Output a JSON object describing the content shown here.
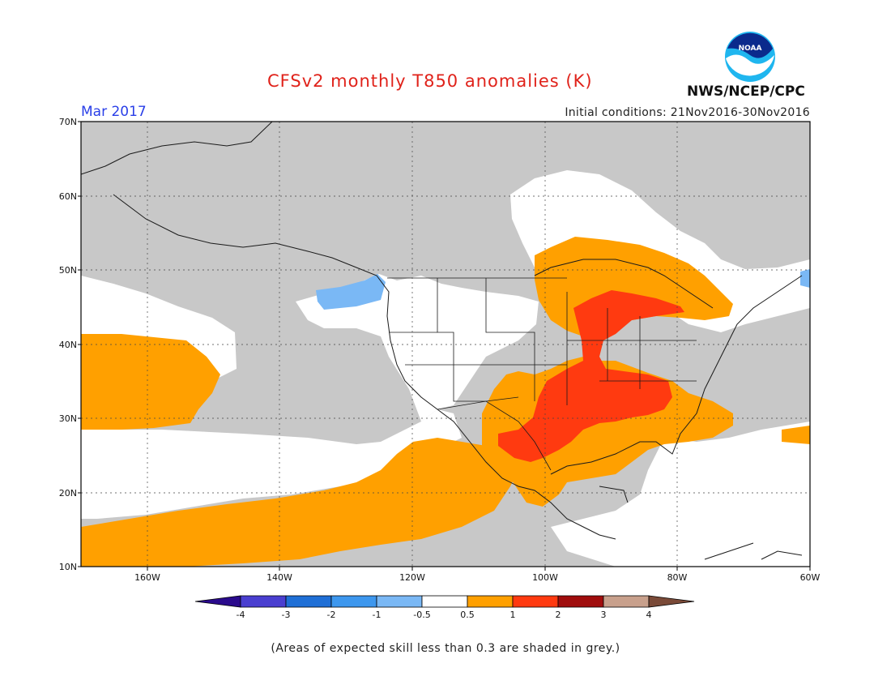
{
  "header": {
    "title": "CFSv2 monthly T850 anomalies (K)",
    "month": "Mar 2017",
    "initial_conditions": "Initial conditions: 21Nov2016-30Nov2016",
    "agency": "NWS/NCEP/CPC",
    "logo_text": "NOAA"
  },
  "map": {
    "lat_labels": [
      "70N",
      "60N",
      "50N",
      "40N",
      "30N",
      "20N",
      "10N"
    ],
    "lon_labels": [
      "160W",
      "140W",
      "120W",
      "100W",
      "80W",
      "60W"
    ],
    "lat_range": [
      10,
      70
    ],
    "lon_range": [
      -170,
      -60
    ]
  },
  "colorbar": {
    "labels": [
      "-4",
      "-3",
      "-2",
      "-1",
      "-0.5",
      "0.5",
      "1",
      "2",
      "3",
      "4"
    ],
    "colors": [
      "#2a0a8c",
      "#4a3fd0",
      "#1f6fd6",
      "#3d97ee",
      "#7ab8f5",
      "#ffffff",
      "#ffa000",
      "#ff3a10",
      "#a00d0d",
      "#c8a08c",
      "#7a4a38"
    ]
  },
  "legend_colors": {
    "grey_low_skill": "#c8c8c8",
    "positive_0_5_to_1": "#ffa000",
    "positive_1_to_2": "#ff3a10",
    "negative_0_5_to_1": "#7ab8f5",
    "neutral": "#ffffff"
  },
  "footnote": "(Areas of expected skill less than 0.3 are shaded in grey.)"
}
